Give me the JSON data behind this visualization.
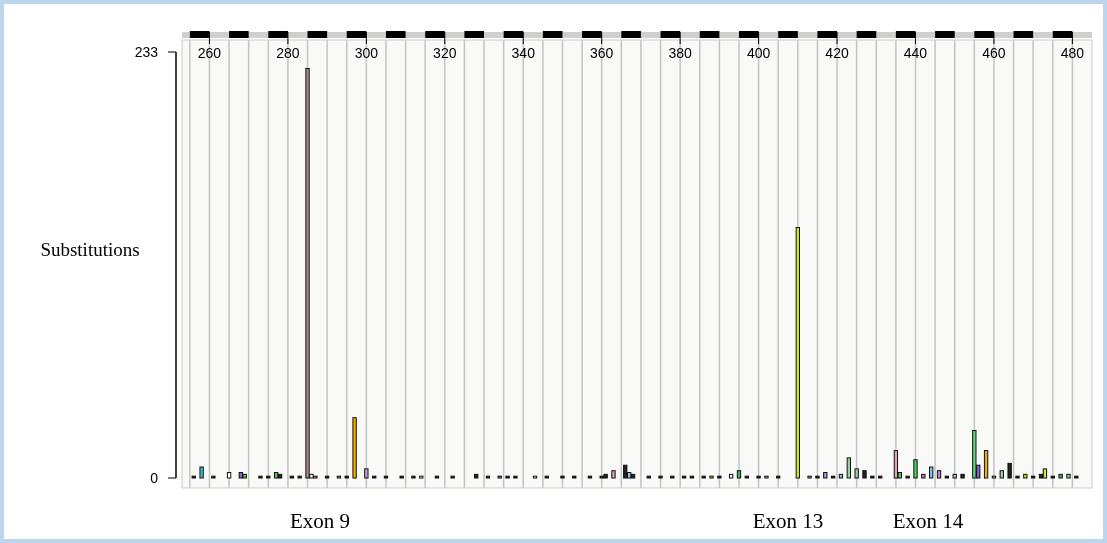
{
  "chart_data": {
    "type": "bar",
    "ylabel": "Substitutions",
    "x": [
      256,
      258,
      261,
      265,
      268,
      269,
      273,
      275,
      277,
      278,
      281,
      283,
      285,
      286,
      287,
      290,
      293,
      295,
      297,
      300,
      302,
      305,
      309,
      312,
      314,
      318,
      322,
      328,
      331,
      334,
      336,
      338,
      343,
      346,
      350,
      353,
      357,
      360,
      361,
      363,
      366,
      367,
      368,
      372,
      375,
      378,
      381,
      383,
      386,
      388,
      390,
      393,
      395,
      397,
      400,
      402,
      405,
      410,
      413,
      415,
      417,
      419,
      421,
      423,
      425,
      427,
      429,
      431,
      435,
      436,
      438,
      440,
      442,
      444,
      446,
      448,
      450,
      452,
      455,
      456,
      458,
      460,
      462,
      464,
      466,
      468,
      470,
      472,
      473,
      475,
      477,
      479,
      481
    ],
    "values": [
      1,
      6,
      1,
      3,
      3,
      2,
      1,
      1,
      3,
      2,
      1,
      1,
      224,
      2,
      1,
      1,
      1,
      1,
      33,
      5,
      1,
      1,
      1,
      1,
      1,
      1,
      1,
      2,
      1,
      1,
      1,
      1,
      1,
      1,
      1,
      1,
      1,
      1,
      2,
      4,
      7,
      3,
      2,
      1,
      1,
      1,
      1,
      1,
      1,
      1,
      1,
      2,
      4,
      1,
      1,
      1,
      1,
      137,
      1,
      1,
      3,
      1,
      2,
      11,
      5,
      4,
      1,
      1,
      15,
      3,
      1,
      10,
      2,
      6,
      4,
      1,
      2,
      2,
      26,
      7,
      15,
      1,
      4,
      8,
      1,
      2,
      1,
      2,
      5,
      1,
      2,
      2,
      1
    ],
    "colors": [
      "#222222",
      "#3cc0c8",
      "#222222",
      "#ffffff",
      "#8a5cd6",
      "#5ad040",
      "#222222",
      "#222222",
      "#5ad040",
      "#222222",
      "#222222",
      "#222222",
      "#b08888",
      "#ffffff",
      "#e08080",
      "#222222",
      "#e08080",
      "#222222",
      "#f0b000",
      "#c8a0e0",
      "#222222",
      "#222222",
      "#222222",
      "#222222",
      "#ffffff",
      "#222222",
      "#222222",
      "#222222",
      "#222222",
      "#8a5cd6",
      "#222222",
      "#222222",
      "#ffffff",
      "#222222",
      "#222222",
      "#222222",
      "#222222",
      "#222222",
      "#222222",
      "#e0a0c0",
      "#222222",
      "#80c0f0",
      "#222222",
      "#222222",
      "#222222",
      "#222222",
      "#222222",
      "#222222",
      "#222222",
      "#d0e020",
      "#222222",
      "#ffffff",
      "#40b060",
      "#222222",
      "#222222",
      "#a0d0a0",
      "#222222",
      "#c8e830",
      "#e08080",
      "#222222",
      "#b090f0",
      "#222222",
      "#80c0f0",
      "#a0d0a0",
      "#a0d0a0",
      "#222222",
      "#222222",
      "#222222",
      "#e0a0c0",
      "#5ad040",
      "#222222",
      "#40d060",
      "#e08080",
      "#80c0f0",
      "#c080e0",
      "#222222",
      "#a0d0a0",
      "#222222",
      "#60d880",
      "#8a5cd6",
      "#f0b000",
      "#d0e020",
      "#a0d0a0",
      "#222222",
      "#222222",
      "#d0e020",
      "#222222",
      "#222222",
      "#c8e830",
      "#222222",
      "#40b060",
      "#a0d0a0",
      "#222222"
    ],
    "xlim": [
      253,
      485
    ],
    "xticks": [
      {
        "value": 255,
        "label": null
      },
      260,
      {
        "value": 265,
        "label": null
      },
      {
        "value": 270,
        "label": null
      },
      {
        "value": 275,
        "label": null
      },
      280,
      {
        "value": 285,
        "label": null
      },
      {
        "value": 290,
        "label": null
      },
      {
        "value": 295,
        "label": null
      },
      300,
      {
        "value": 305,
        "label": null
      },
      {
        "value": 310,
        "label": null
      },
      {
        "value": 315,
        "label": null
      },
      320,
      {
        "value": 325,
        "label": null
      },
      {
        "value": 330,
        "label": null
      },
      {
        "value": 335,
        "label": null
      },
      340,
      {
        "value": 345,
        "label": null
      },
      {
        "value": 350,
        "label": null
      },
      {
        "value": 355,
        "label": null
      },
      360,
      {
        "value": 365,
        "label": null
      },
      {
        "value": 370,
        "label": null
      },
      {
        "value": 375,
        "label": null
      },
      380,
      {
        "value": 385,
        "label": null
      },
      {
        "value": 390,
        "label": null
      },
      {
        "value": 395,
        "label": null
      },
      400,
      {
        "value": 405,
        "label": null
      },
      {
        "value": 410,
        "label": null
      },
      {
        "value": 415,
        "label": null
      },
      420,
      {
        "value": 425,
        "label": null
      },
      {
        "value": 430,
        "label": null
      },
      {
        "value": 435,
        "label": null
      },
      440,
      {
        "value": 445,
        "label": null
      },
      {
        "value": 450,
        "label": null
      },
      {
        "value": 455,
        "label": null
      },
      460,
      {
        "value": 465,
        "label": null
      },
      {
        "value": 470,
        "label": null
      },
      {
        "value": 475,
        "label": null
      },
      480
    ],
    "ylim": [
      0,
      233
    ],
    "yticks": [
      0,
      233
    ],
    "grid": "x",
    "annotations": [
      "Exon 9",
      "Exon 13",
      "Exon 14"
    ]
  }
}
